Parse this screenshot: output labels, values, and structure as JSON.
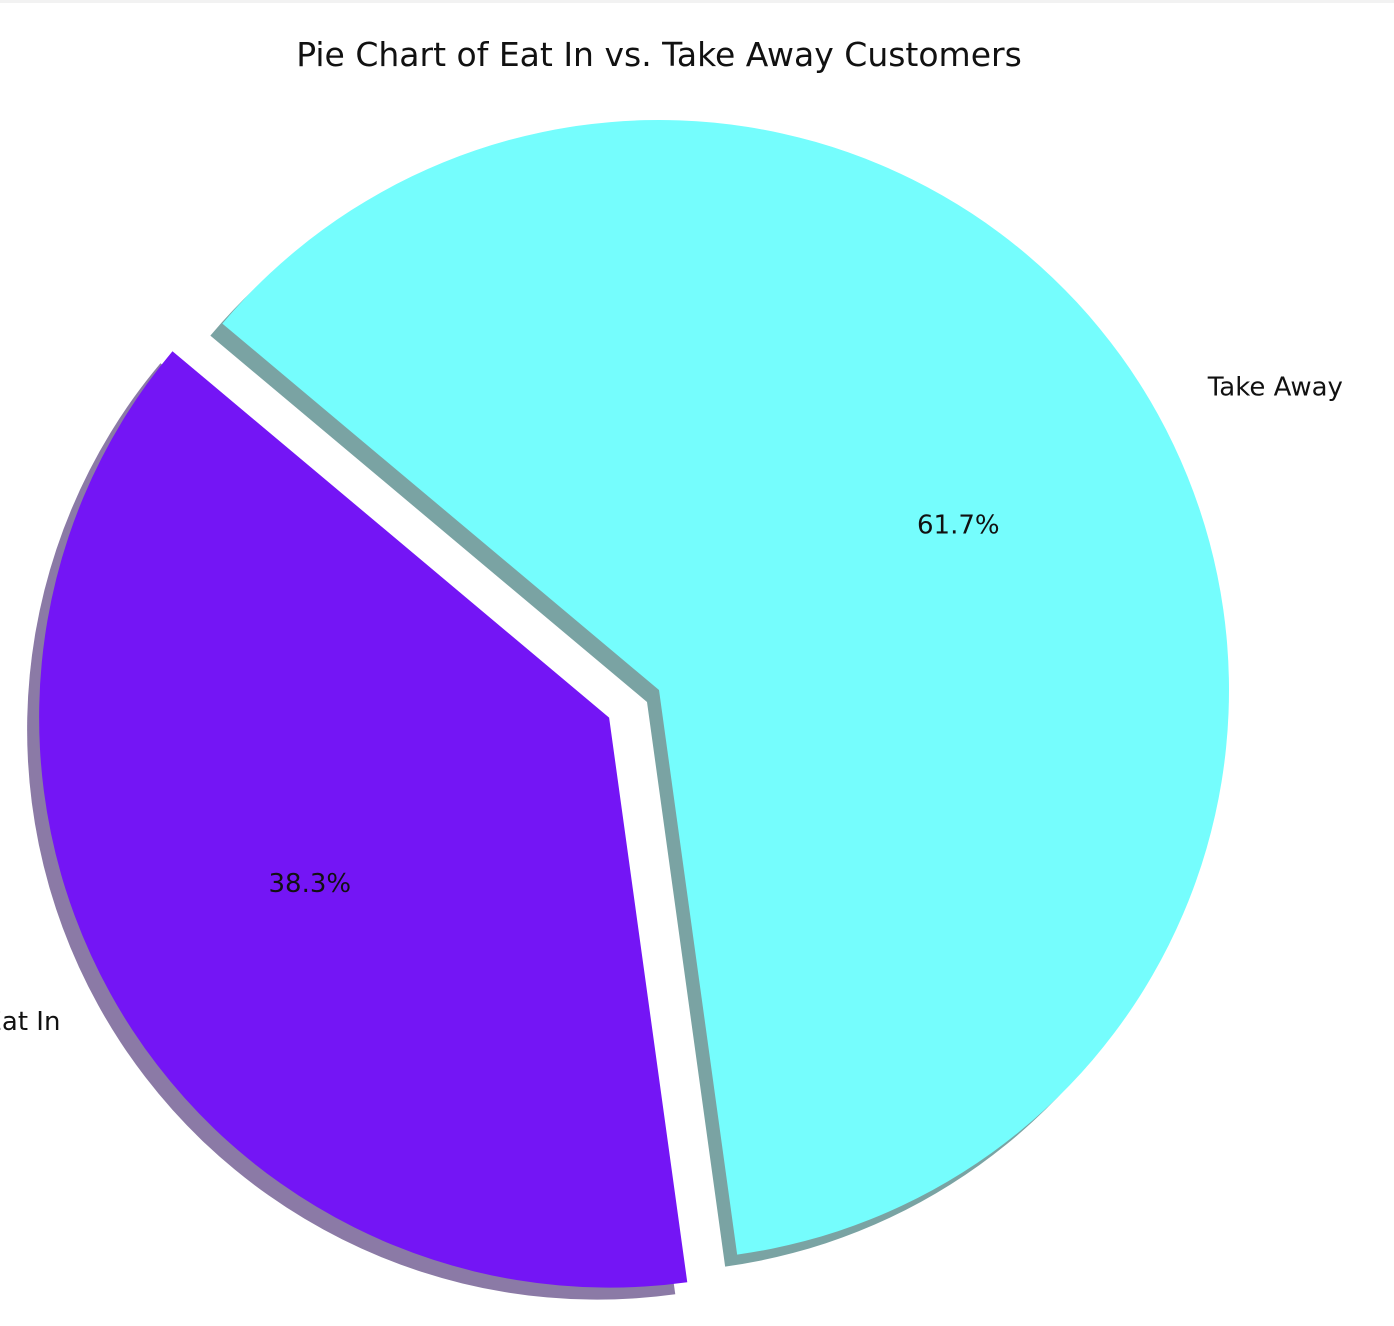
{
  "chart_data": {
    "type": "pie",
    "title": "Pie Chart of Eat In vs. Take Away Customers",
    "slices": [
      {
        "label": "Eat In",
        "value": 38.3,
        "pct_label": "38.3%",
        "color": "#7415f5",
        "shadow_color": "#8b7aa6",
        "exploded": true
      },
      {
        "label": "Take Away",
        "value": 61.7,
        "pct_label": "61.7%",
        "color": "#75fdfd",
        "shadow_color": "#7aa3a3",
        "exploded": false
      }
    ],
    "shadow": true,
    "start_angle_deg": 140,
    "legend": "none"
  }
}
